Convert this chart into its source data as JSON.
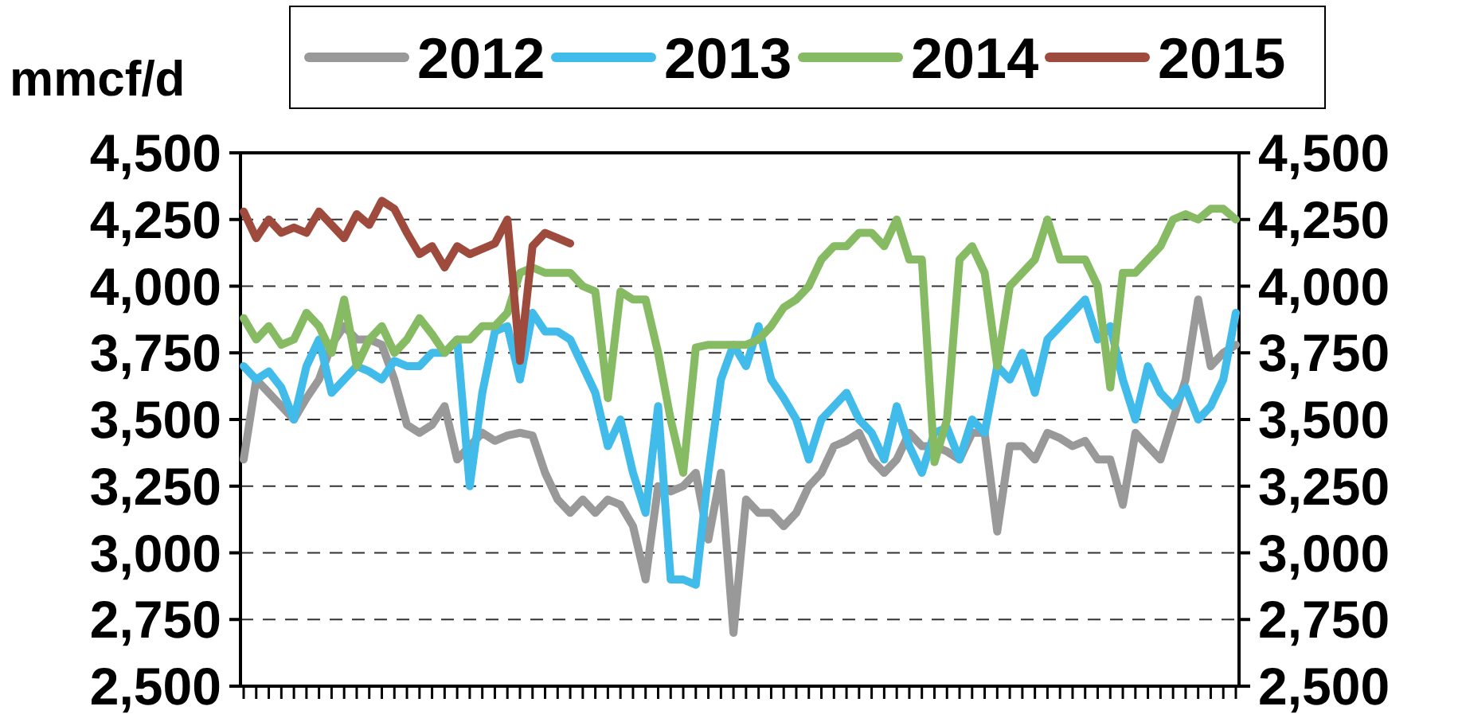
{
  "chart_data": {
    "type": "line",
    "ylabel": "mmcf/d",
    "categories": [
      null,
      null,
      null,
      null,
      null,
      null,
      null,
      null,
      null,
      null,
      null,
      null,
      null,
      null,
      null,
      null,
      null,
      null,
      null,
      null,
      null,
      null,
      null,
      null,
      null,
      null,
      null,
      null,
      null,
      null,
      null,
      null,
      null,
      null,
      null,
      null,
      null,
      null,
      null,
      null,
      null,
      null,
      null,
      null,
      null,
      null,
      null,
      null,
      null,
      null,
      null,
      null,
      null,
      null,
      null,
      null,
      null,
      null,
      null,
      null,
      null,
      null,
      null,
      null,
      null,
      null,
      null,
      null,
      null,
      null,
      null,
      null,
      null,
      null,
      null,
      null,
      null,
      null,
      null,
      null
    ],
    "series": [
      {
        "name": "2012",
        "color": "#999999",
        "values": [
          3350,
          3650,
          3600,
          3550,
          3500,
          3580,
          3650,
          3780,
          3850,
          3800,
          3800,
          3780,
          3650,
          3480,
          3450,
          3480,
          3550,
          3350,
          3400,
          3450,
          3420,
          3440,
          3450,
          3440,
          3300,
          3200,
          3150,
          3200,
          3150,
          3200,
          3180,
          3100,
          2900,
          3250,
          3230,
          3250,
          3300,
          3050,
          3300,
          2700,
          3200,
          3150,
          3150,
          3100,
          3150,
          3250,
          3300,
          3400,
          3420,
          3450,
          3350,
          3300,
          3350,
          3450,
          3400,
          3400,
          3380,
          3350,
          3450,
          3450,
          3080,
          3400,
          3400,
          3350,
          3450,
          3430,
          3400,
          3420,
          3350,
          3350,
          3180,
          3450,
          3400,
          3350,
          3500,
          3650,
          3950,
          3700,
          3750,
          3780
        ]
      },
      {
        "name": "2013",
        "color": "#41bbe9",
        "values": [
          3700,
          3650,
          3680,
          3620,
          3500,
          3700,
          3800,
          3600,
          3650,
          3700,
          3680,
          3650,
          3720,
          3700,
          3700,
          3750,
          3750,
          3800,
          3250,
          3600,
          3830,
          3850,
          3650,
          3900,
          3830,
          3830,
          3800,
          3700,
          3600,
          3400,
          3500,
          3300,
          3150,
          3550,
          2900,
          2900,
          2880,
          3300,
          3650,
          3780,
          3700,
          3850,
          3650,
          3580,
          3500,
          3350,
          3500,
          3550,
          3600,
          3500,
          3450,
          3350,
          3550,
          3400,
          3300,
          3450,
          3470,
          3350,
          3500,
          3450,
          3700,
          3650,
          3750,
          3600,
          3800,
          3850,
          3900,
          3950,
          3800,
          3850,
          3650,
          3500,
          3700,
          3600,
          3550,
          3620,
          3500,
          3550,
          3650,
          3900
        ]
      },
      {
        "name": "2014",
        "color": "#86bb63",
        "values": [
          3880,
          3800,
          3850,
          3780,
          3800,
          3900,
          3850,
          3750,
          3950,
          3700,
          3800,
          3850,
          3750,
          3800,
          3880,
          3820,
          3750,
          3800,
          3800,
          3850,
          3850,
          3900,
          4050,
          4070,
          4050,
          4050,
          4050,
          4000,
          3980,
          3580,
          3980,
          3950,
          3950,
          3750,
          3500,
          3300,
          3770,
          3780,
          3780,
          3780,
          3780,
          3800,
          3850,
          3920,
          3950,
          4000,
          4100,
          4150,
          4150,
          4200,
          4200,
          4150,
          4250,
          4100,
          4100,
          3340,
          3500,
          4100,
          4150,
          4050,
          3700,
          4000,
          4050,
          4100,
          4250,
          4100,
          4100,
          4100,
          4000,
          3620,
          4050,
          4050,
          4100,
          4150,
          4250,
          4270,
          4250,
          4290,
          4290,
          4250
        ]
      },
      {
        "name": "2015",
        "color": "#9e4a3c",
        "values": [
          4280,
          4180,
          4250,
          4200,
          4220,
          4200,
          4280,
          4230,
          4180,
          4270,
          4230,
          4320,
          4290,
          4200,
          4120,
          4150,
          4070,
          4150,
          4120,
          4140,
          4160,
          4250,
          3720,
          4150,
          4200,
          4180,
          4160,
          null,
          null,
          null,
          null,
          null,
          null,
          null,
          null,
          null,
          null,
          null,
          null,
          null,
          null,
          null,
          null,
          null,
          null,
          null,
          null,
          null,
          null,
          null,
          null,
          null,
          null,
          null,
          null,
          null,
          null,
          null,
          null,
          null,
          null,
          null,
          null,
          null,
          null,
          null,
          null,
          null,
          null,
          null,
          null,
          null,
          null,
          null,
          null,
          null,
          null,
          null,
          null,
          null
        ]
      }
    ],
    "ylim": [
      2500,
      4500
    ],
    "yticks": [
      {
        "value": 2500,
        "label": "2,500"
      },
      {
        "value": 2750,
        "label": "2,750"
      },
      {
        "value": 3000,
        "label": "3,000"
      },
      {
        "value": 3250,
        "label": "3,250"
      },
      {
        "value": 3500,
        "label": "3,500"
      },
      {
        "value": 3750,
        "label": "3,750"
      },
      {
        "value": 4000,
        "label": "4,000"
      },
      {
        "value": 4250,
        "label": "4,250"
      },
      {
        "value": 4500,
        "label": "4,500"
      }
    ],
    "y2lim": [
      2500,
      4500
    ],
    "y2ticks": [
      {
        "value": 2500,
        "label": "2,500"
      },
      {
        "value": 2750,
        "label": "2,750"
      },
      {
        "value": 3000,
        "label": "3,000"
      },
      {
        "value": 3250,
        "label": "3,250"
      },
      {
        "value": 3500,
        "label": "3,500"
      },
      {
        "value": 3750,
        "label": "3,750"
      },
      {
        "value": 4000,
        "label": "4,000"
      },
      {
        "value": 4250,
        "label": "4,250"
      },
      {
        "value": 4500,
        "label": "4,500"
      }
    ],
    "grid": "y",
    "legend": "top",
    "tick_labels": "y",
    "line_style": "solid",
    "marker": "none"
  }
}
